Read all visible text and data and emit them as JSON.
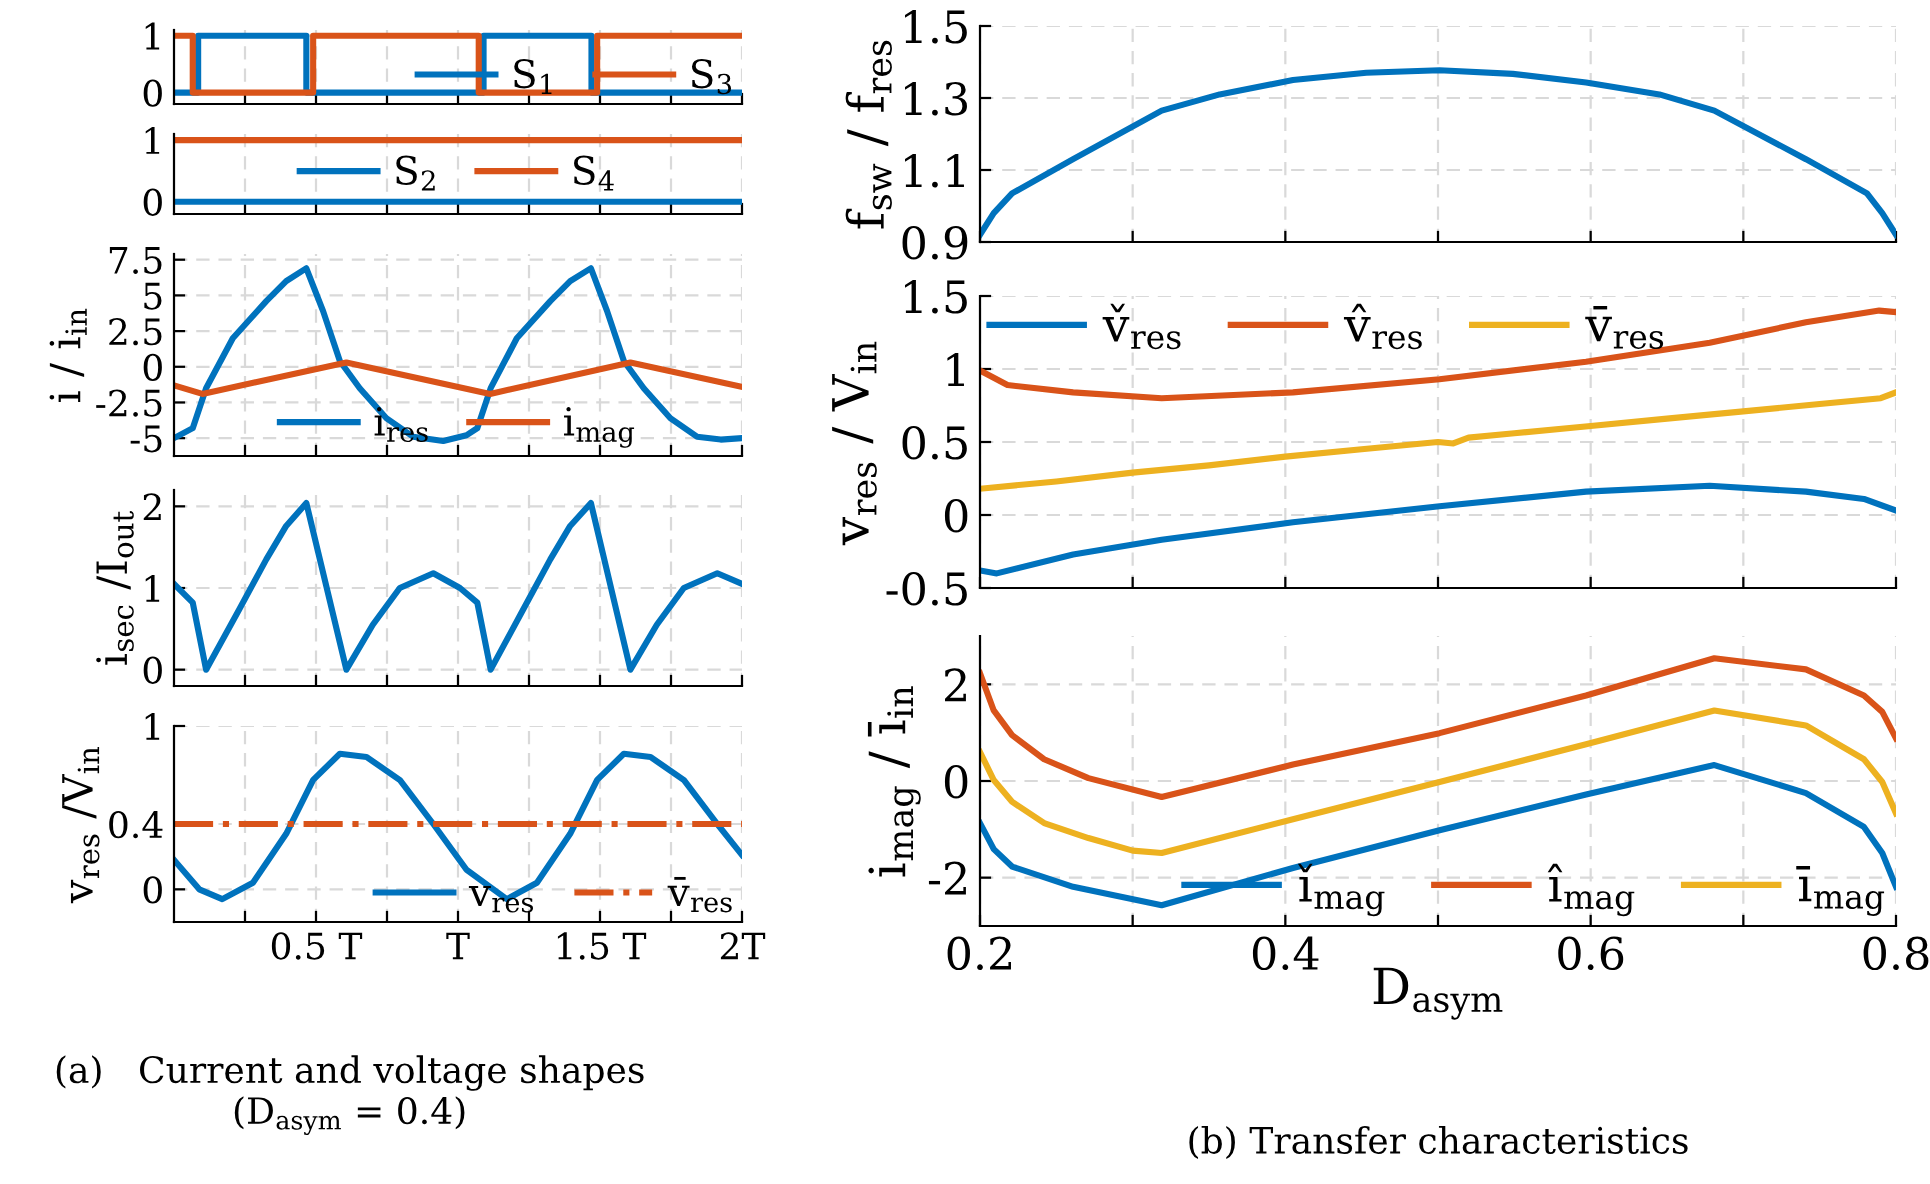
{
  "chart_data": [
    {
      "type": "line",
      "xlim": [
        0,
        2
      ],
      "ylim": [
        -0.2,
        1.1
      ],
      "xticks": [
        {
          "value": 0.25,
          "label": null
        },
        {
          "value": 0.5,
          "label": null
        },
        {
          "value": 0.75,
          "label": null
        },
        {
          "value": 1,
          "label": null
        },
        {
          "value": 1.25,
          "label": null
        },
        {
          "value": 1.5,
          "label": null
        },
        {
          "value": 1.75,
          "label": null
        },
        {
          "value": 2,
          "label": null
        }
      ],
      "yticks": [
        0,
        1
      ],
      "grid": true,
      "legend": "bottom right",
      "tick_labels": "y",
      "series": [
        {
          "name": "S$_{1}$",
          "color": "#0072bd",
          "x": [
            0,
            0.085,
            0.085,
            0.466,
            0.466,
            1.09,
            1.09,
            1.47,
            1.47,
            2
          ],
          "values": [
            0,
            0,
            1,
            1,
            0,
            0,
            1,
            1,
            0,
            0
          ]
        },
        {
          "name": "S$_{3}$",
          "color": "#d95319",
          "x": [
            0,
            0.066,
            0.066,
            0.49,
            0.49,
            1.073,
            1.073,
            1.49,
            1.49,
            2
          ],
          "values": [
            1,
            1,
            0,
            0,
            1,
            1,
            0,
            0,
            1,
            1
          ]
        }
      ]
    },
    {
      "type": "line",
      "xlim": [
        0,
        2
      ],
      "ylim": [
        -0.2,
        1.1
      ],
      "xticks": [
        {
          "value": 0.25,
          "label": null
        },
        {
          "value": 0.5,
          "label": null
        },
        {
          "value": 0.75,
          "label": null
        },
        {
          "value": 1,
          "label": null
        },
        {
          "value": 1.25,
          "label": null
        },
        {
          "value": 1.5,
          "label": null
        },
        {
          "value": 1.75,
          "label": null
        },
        {
          "value": 2,
          "label": null
        }
      ],
      "yticks": [
        0,
        1
      ],
      "grid": true,
      "legend": "center",
      "tick_labels": "y",
      "series": [
        {
          "name": "S$_{2}$",
          "color": "#0072bd",
          "x": [
            0,
            2
          ],
          "values": [
            0,
            0
          ]
        },
        {
          "name": "S$_{4}$",
          "color": "#d95319",
          "x": [
            0,
            2
          ],
          "values": [
            1,
            1
          ]
        }
      ]
    },
    {
      "type": "line",
      "ylabel": "i / i$_{in}$",
      "xlim": [
        0,
        2
      ],
      "ylim": [
        -6.25,
        7.9
      ],
      "xticks": [
        {
          "value": 0.25,
          "label": null
        },
        {
          "value": 0.5,
          "label": null
        },
        {
          "value": 0.75,
          "label": null
        },
        {
          "value": 1,
          "label": null
        },
        {
          "value": 1.25,
          "label": null
        },
        {
          "value": 1.5,
          "label": null
        },
        {
          "value": 1.75,
          "label": null
        },
        {
          "value": 2,
          "label": null
        }
      ],
      "yticks": [
        -5,
        -2.5,
        0,
        2.5,
        5,
        7.5
      ],
      "grid": true,
      "legend": "bottom",
      "tick_labels": "y",
      "series": [
        {
          "name": "i$_{res}$",
          "color": "#0072bd",
          "x": [
            0,
            0.066,
            0.113,
            0.207,
            0.325,
            0.395,
            0.466,
            0.525,
            0.584,
            0.654,
            0.748,
            0.842,
            0.948,
            1.03,
            1.068,
            1.115,
            1.207,
            1.325,
            1.395,
            1.468,
            1.525,
            1.584,
            1.654,
            1.748,
            1.842,
            1.925,
            2
          ],
          "values": [
            -5,
            -4.3,
            -1.5,
            2.0,
            4.6,
            6.0,
            6.9,
            3.9,
            0.4,
            -1.5,
            -3.6,
            -4.9,
            -5.2,
            -4.8,
            -4.3,
            -1.5,
            2.0,
            4.6,
            6.0,
            6.9,
            3.9,
            0.4,
            -1.5,
            -3.6,
            -4.9,
            -5.1,
            -5
          ]
        },
        {
          "name": "i$_{mag}$",
          "color": "#d95319",
          "x": [
            0,
            0.1,
            0.607,
            1.113,
            1.607,
            2
          ],
          "values": [
            -1.3,
            -1.9,
            0.3,
            -1.9,
            0.3,
            -1.4
          ]
        }
      ]
    },
    {
      "type": "line",
      "ylabel": "i$_{sec}$ /I$_{out}$",
      "xlim": [
        0,
        2
      ],
      "ylim": [
        -0.2,
        2.2
      ],
      "xticks": [
        {
          "value": 0.25,
          "label": null
        },
        {
          "value": 0.5,
          "label": null
        },
        {
          "value": 0.75,
          "label": null
        },
        {
          "value": 1,
          "label": null
        },
        {
          "value": 1.25,
          "label": null
        },
        {
          "value": 1.5,
          "label": null
        },
        {
          "value": 1.75,
          "label": null
        },
        {
          "value": 2,
          "label": null
        }
      ],
      "yticks": [
        0,
        1,
        2
      ],
      "grid": true,
      "tick_labels": "y",
      "series": [
        {
          "color": "#0072bd",
          "x": [
            0,
            0.066,
            0.113,
            0.23,
            0.325,
            0.395,
            0.466,
            0.607,
            0.7,
            0.795,
            0.913,
            1.007,
            1.068,
            1.115,
            1.23,
            1.325,
            1.395,
            1.468,
            1.607,
            1.7,
            1.795,
            1.913,
            2
          ],
          "values": [
            1.05,
            0.82,
            0,
            0.74,
            1.35,
            1.76,
            2.04,
            0,
            0.55,
            1.0,
            1.18,
            1.0,
            0.82,
            0,
            0.74,
            1.35,
            1.76,
            2.04,
            0,
            0.55,
            1.0,
            1.18,
            1.05
          ]
        }
      ]
    },
    {
      "type": "line",
      "ylabel": "v$_{res}$ /V$_{in}$",
      "xlim": [
        0,
        2
      ],
      "ylim": [
        -0.2,
        1.0
      ],
      "xticks": [
        {
          "value": 0.25,
          "label": null
        },
        {
          "value": 0.5,
          "label": "0.5 T"
        },
        {
          "value": 0.75,
          "label": null
        },
        {
          "value": 1,
          "label": "T"
        },
        {
          "value": 1.25,
          "label": null
        },
        {
          "value": 1.5,
          "label": "1.5 T"
        },
        {
          "value": 1.75,
          "label": null
        },
        {
          "value": 2,
          "label": "2T"
        }
      ],
      "yticks": [
        0,
        0.4,
        1
      ],
      "grid": true,
      "legend": "bottom right",
      "annotations": [
        "(a)   Current and voltage shapes\n(D$_{asym}$ = 0.4)"
      ],
      "series": [
        {
          "name": "v$_{res}$",
          "color": "#0072bd",
          "x": [
            0,
            0.089,
            0.17,
            0.278,
            0.395,
            0.49,
            0.584,
            0.678,
            0.795,
            0.913,
            1.03,
            1.172,
            1.278,
            1.395,
            1.49,
            1.584,
            1.678,
            1.795,
            1.913,
            2
          ],
          "values": [
            0.18,
            0,
            -0.06,
            0.04,
            0.34,
            0.67,
            0.83,
            0.81,
            0.67,
            0.4,
            0.12,
            -0.06,
            0.04,
            0.34,
            0.67,
            0.83,
            0.81,
            0.67,
            0.4,
            0.21
          ]
        },
        {
          "name": "v̄$_{res}$",
          "color": "#d95319",
          "line_style": "dashdot",
          "x": [
            0,
            2
          ],
          "values": [
            0.4,
            0.4
          ]
        }
      ]
    },
    {
      "type": "line",
      "ylabel": "f$_{sw}$ / f$_{res}$",
      "xlim": [
        0.2,
        0.8
      ],
      "ylim": [
        0.9,
        1.5
      ],
      "xticks": [
        {
          "value": 0.2,
          "label": null
        },
        {
          "value": 0.3,
          "label": null
        },
        {
          "value": 0.4,
          "label": null
        },
        {
          "value": 0.5,
          "label": null
        },
        {
          "value": 0.6,
          "label": null
        },
        {
          "value": 0.7,
          "label": null
        },
        {
          "value": 0.8,
          "label": null
        }
      ],
      "yticks": [
        0.9,
        1.1,
        1.3,
        1.5
      ],
      "grid": true,
      "tick_labels": "y",
      "series": [
        {
          "color": "#0072bd",
          "x": [
            0.2,
            0.209,
            0.221,
            0.261,
            0.319,
            0.357,
            0.405,
            0.453,
            0.501,
            0.549,
            0.597,
            0.645,
            0.681,
            0.741,
            0.781,
            0.791,
            0.8
          ],
          "values": [
            0.92,
            0.98,
            1.035,
            1.13,
            1.265,
            1.31,
            1.35,
            1.37,
            1.377,
            1.367,
            1.343,
            1.31,
            1.265,
            1.13,
            1.035,
            0.98,
            0.92
          ]
        }
      ]
    },
    {
      "type": "line",
      "ylabel": "v$_{res}$ / V$_{in}$",
      "xlim": [
        0.2,
        0.8
      ],
      "ylim": [
        -0.5,
        1.5
      ],
      "xticks": [
        {
          "value": 0.2,
          "label": null
        },
        {
          "value": 0.3,
          "label": null
        },
        {
          "value": 0.4,
          "label": null
        },
        {
          "value": 0.5,
          "label": null
        },
        {
          "value": 0.6,
          "label": null
        },
        {
          "value": 0.7,
          "label": null
        },
        {
          "value": 0.8,
          "label": null
        }
      ],
      "yticks": [
        -0.5,
        0,
        0.5,
        1,
        1.5
      ],
      "grid": true,
      "legend": "top left",
      "tick_labels": "y",
      "series": [
        {
          "name": "v̌$_{res}$",
          "color": "#0072bd",
          "x": [
            0.2,
            0.211,
            0.261,
            0.319,
            0.405,
            0.501,
            0.597,
            0.678,
            0.741,
            0.779,
            0.8
          ],
          "values": [
            -0.38,
            -0.4,
            -0.27,
            -0.17,
            -0.05,
            0.06,
            0.16,
            0.2,
            0.16,
            0.11,
            0.03
          ]
        },
        {
          "name": "v̂$_{res}$",
          "color": "#d95319",
          "x": [
            0.2,
            0.218,
            0.261,
            0.319,
            0.405,
            0.501,
            0.597,
            0.678,
            0.741,
            0.789,
            0.8
          ],
          "values": [
            0.99,
            0.89,
            0.84,
            0.8,
            0.84,
            0.93,
            1.05,
            1.18,
            1.32,
            1.4,
            1.39
          ]
        },
        {
          "name": "v̄$_{res}$",
          "color": "#edb120",
          "x": [
            0.2,
            0.25,
            0.3,
            0.35,
            0.4,
            0.45,
            0.5,
            0.51,
            0.52,
            0.55,
            0.6,
            0.65,
            0.7,
            0.75,
            0.79,
            0.8
          ],
          "values": [
            0.18,
            0.23,
            0.29,
            0.34,
            0.4,
            0.45,
            0.5,
            0.49,
            0.53,
            0.56,
            0.61,
            0.66,
            0.71,
            0.76,
            0.8,
            0.84
          ]
        }
      ]
    },
    {
      "type": "line",
      "ylabel": "i$_{mag}$ / ī$_{in}$",
      "xlabel": "D$_{asym}$",
      "xlim": [
        0.2,
        0.8
      ],
      "ylim": [
        -3,
        3
      ],
      "xticks": [
        0.2,
        {
          "value": 0.3,
          "label": null
        },
        0.4,
        {
          "value": 0.5,
          "label": null
        },
        0.6,
        {
          "value": 0.7,
          "label": null
        },
        0.8
      ],
      "yticks": [
        -2,
        0,
        2
      ],
      "grid": true,
      "legend": "bottom right",
      "annotations": [
        "(b) Transfer characteristics"
      ],
      "series": [
        {
          "name": "ǐ$_{mag}$",
          "color": "#0072bd",
          "x": [
            0.2,
            0.209,
            0.221,
            0.261,
            0.319,
            0.405,
            0.501,
            0.597,
            0.681,
            0.741,
            0.779,
            0.791,
            0.8
          ],
          "values": [
            -0.87,
            -1.41,
            -1.77,
            -2.19,
            -2.57,
            -1.8,
            -1.02,
            -0.28,
            0.33,
            -0.25,
            -0.95,
            -1.49,
            -2.19
          ]
        },
        {
          "name": "î$_{mag}$",
          "color": "#d95319",
          "x": [
            0.2,
            0.209,
            0.221,
            0.242,
            0.271,
            0.319,
            0.405,
            0.501,
            0.597,
            0.681,
            0.741,
            0.779,
            0.791,
            0.8
          ],
          "values": [
            2.23,
            1.46,
            0.95,
            0.45,
            0.06,
            -0.33,
            0.34,
            0.99,
            1.77,
            2.54,
            2.31,
            1.77,
            1.43,
            0.88
          ]
        },
        {
          "name": "ī$_{mag}$",
          "color": "#edb120",
          "x": [
            0.2,
            0.209,
            0.221,
            0.242,
            0.271,
            0.3,
            0.319,
            0.405,
            0.501,
            0.597,
            0.681,
            0.741,
            0.779,
            0.791,
            0.8
          ],
          "values": [
            0.6,
            0.02,
            -0.43,
            -0.87,
            -1.18,
            -1.44,
            -1.49,
            -0.79,
            -0.02,
            0.76,
            1.46,
            1.15,
            0.45,
            -0.02,
            -0.67
          ]
        }
      ]
    }
  ]
}
